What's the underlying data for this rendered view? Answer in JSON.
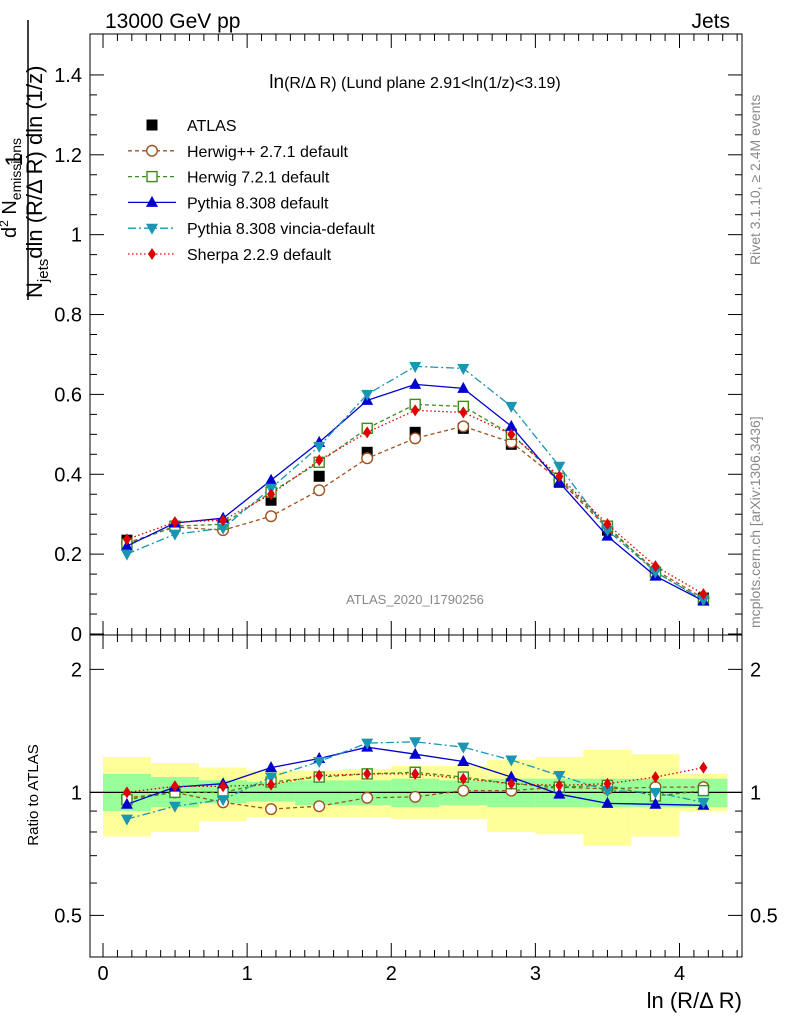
{
  "header": {
    "left": "13000 GeV pp",
    "right": "Jets"
  },
  "main_title_func": "ln",
  "main_title_rest": "(R/Δ R) (Lund plane 2.91<ln(1/z)<3.19)",
  "watermark": "ATLAS_2020_I1790256",
  "side_labels": {
    "rivet": "Rivet 3.1.10, ≥ 2.4M events",
    "mcplots": "mcplots.cern.ch [arXiv:1306.3436]"
  },
  "ylabel_parts": {
    "one": "1",
    "n": "N",
    "jets": "jets",
    "den_rest": "dln (R/Δ R) dln (1/z)",
    "num_d": "d",
    "num_sup": "2",
    "num_n": " N",
    "num_sub": "emissions"
  },
  "ratio_ylabel": "Ratio to ATLAS",
  "colors": {
    "atlas": "#000000",
    "herwigpp": "#a0521e",
    "herwig7": "#3f8c1e",
    "pythia": "#0000d0",
    "vincia": "#1996b4",
    "sherpa": "#e00000",
    "band_inner": "#99ff99",
    "band_outer": "#ffff99"
  },
  "chart_data": {
    "type": "scatter",
    "xlabel": "ln (R/Δ R)",
    "xlim": [
      -0.1,
      4.42
    ],
    "x": [
      0.166,
      0.499,
      0.833,
      1.166,
      1.5,
      1.833,
      2.166,
      2.5,
      2.833,
      3.166,
      3.5,
      3.833,
      4.166
    ],
    "x_bin_edges": [
      0.0,
      0.333,
      0.666,
      1.0,
      1.333,
      1.666,
      2.0,
      2.333,
      2.666,
      3.0,
      3.333,
      3.666,
      4.0,
      4.333
    ],
    "main": {
      "ylim": [
        0.0,
        1.5
      ],
      "yticks": [
        0.0,
        0.2,
        0.4,
        0.6,
        0.8,
        1.0,
        1.2,
        1.4
      ],
      "ytick_labels": [
        "0",
        "0.2",
        "0.4",
        "0.6",
        "0.8",
        "1",
        "1.2",
        "1.4"
      ],
      "series": [
        {
          "name": "ATLAS",
          "key": "atlas",
          "values": [
            0.235,
            0.27,
            0.275,
            0.335,
            0.395,
            0.455,
            0.505,
            0.515,
            0.475,
            0.38,
            0.26,
            0.155,
            0.09
          ]
        },
        {
          "name": "Herwig++ 2.7.1 default",
          "key": "herwigpp",
          "values": [
            0.228,
            0.268,
            0.26,
            0.295,
            0.36,
            0.44,
            0.49,
            0.52,
            0.48,
            0.385,
            0.265,
            0.16,
            0.09
          ]
        },
        {
          "name": "Herwig 7.2.1 default",
          "key": "herwig7",
          "values": [
            0.225,
            0.27,
            0.275,
            0.355,
            0.43,
            0.515,
            0.575,
            0.57,
            0.5,
            0.39,
            0.27,
            0.155,
            0.085
          ]
        },
        {
          "name": "Pythia 8.308 default",
          "key": "pythia",
          "values": [
            0.22,
            0.278,
            0.29,
            0.385,
            0.48,
            0.585,
            0.625,
            0.615,
            0.52,
            0.38,
            0.245,
            0.145,
            0.083
          ]
        },
        {
          "name": "Pythia 8.308 vincia-default",
          "key": "vincia",
          "values": [
            0.2,
            0.25,
            0.265,
            0.365,
            0.47,
            0.6,
            0.67,
            0.665,
            0.57,
            0.42,
            0.26,
            0.155,
            0.085
          ]
        },
        {
          "name": "Sherpa 2.2.9 default",
          "key": "sherpa",
          "values": [
            0.237,
            0.28,
            0.285,
            0.35,
            0.435,
            0.505,
            0.56,
            0.555,
            0.5,
            0.395,
            0.275,
            0.17,
            0.1
          ]
        }
      ]
    },
    "ratio": {
      "ylim": [
        0.4,
        2.4
      ],
      "log_scale": true,
      "yticks": [
        0.5,
        1,
        2
      ],
      "ytick_labels": [
        "0.5",
        "1",
        "2"
      ],
      "band_inner_low": [
        0.9,
        0.92,
        0.94,
        0.95,
        0.93,
        0.93,
        0.92,
        0.93,
        0.92,
        0.92,
        0.92,
        0.92,
        0.92
      ],
      "band_inner_high": [
        1.11,
        1.09,
        1.07,
        1.06,
        1.07,
        1.07,
        1.08,
        1.07,
        1.08,
        1.08,
        1.08,
        1.08,
        1.08
      ],
      "band_outer_low": [
        0.78,
        0.8,
        0.85,
        0.87,
        0.87,
        0.87,
        0.86,
        0.86,
        0.8,
        0.79,
        0.74,
        0.78,
        0.9
      ],
      "band_outer_high": [
        1.22,
        1.18,
        1.15,
        1.13,
        1.13,
        1.14,
        1.16,
        1.16,
        1.2,
        1.22,
        1.27,
        1.24,
        1.11
      ],
      "series": [
        {
          "name": "Herwig++ 2.7.1 default",
          "key": "herwigpp",
          "values": [
            0.97,
            1.0,
            0.945,
            0.91,
            0.925,
            0.97,
            0.975,
            1.01,
            1.01,
            1.03,
            1.02,
            1.03,
            1.03
          ]
        },
        {
          "name": "Herwig 7.2.1 default",
          "key": "herwig7",
          "values": [
            0.96,
            1.0,
            1.0,
            1.06,
            1.09,
            1.11,
            1.12,
            1.09,
            1.05,
            1.03,
            1.04,
            0.98,
            1.01
          ]
        },
        {
          "name": "Pythia 8.308 default",
          "key": "pythia",
          "values": [
            0.935,
            1.03,
            1.05,
            1.15,
            1.21,
            1.29,
            1.24,
            1.19,
            1.09,
            0.99,
            0.94,
            0.935,
            0.93
          ]
        },
        {
          "name": "Pythia 8.308 vincia-default",
          "key": "vincia",
          "values": [
            0.86,
            0.925,
            0.96,
            1.09,
            1.19,
            1.32,
            1.33,
            1.29,
            1.2,
            1.1,
            1.01,
            1.0,
            0.945
          ]
        },
        {
          "name": "Sherpa 2.2.9 default",
          "key": "sherpa",
          "values": [
            1.0,
            1.035,
            1.035,
            1.045,
            1.1,
            1.11,
            1.11,
            1.08,
            1.05,
            1.04,
            1.05,
            1.09,
            1.15
          ]
        }
      ]
    },
    "xticks": [
      0,
      1,
      2,
      3,
      4
    ],
    "xtick_labels": [
      "0",
      "1",
      "2",
      "3",
      "4"
    ]
  }
}
